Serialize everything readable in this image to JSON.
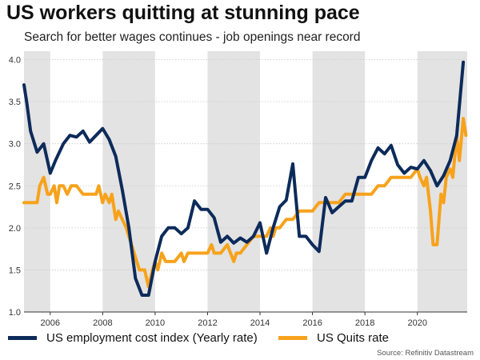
{
  "title": "US workers quitting at stunning pace",
  "subtitle": "Search for better wages continues - job openings near record",
  "source": "Source: Refinitiv Datastream",
  "colors": {
    "eci": "#0d2b5a",
    "quits": "#f7a21b",
    "shade": "#e3e3e3"
  },
  "chart_data": {
    "type": "line",
    "xlim": [
      2005,
      2021.9
    ],
    "ylim": [
      1.0,
      4.1
    ],
    "x_ticks": [
      "2006",
      "2008",
      "2010",
      "2012",
      "2014",
      "2016",
      "2018",
      "2020"
    ],
    "x_tick_values": [
      2006,
      2008,
      2010,
      2012,
      2014,
      2016,
      2018,
      2020
    ],
    "y_ticks": [
      "1.0",
      "1.5",
      "2.0",
      "2.5",
      "3.0",
      "3.5",
      "4.0"
    ],
    "y_tick_values": [
      1.0,
      1.5,
      2.0,
      2.5,
      3.0,
      3.5,
      4.0
    ],
    "grid": true,
    "legend": "bottom",
    "shaded_bands": [
      [
        2005,
        2006
      ],
      [
        2008,
        2010
      ],
      [
        2012,
        2014
      ],
      [
        2016,
        2018
      ],
      [
        2020,
        2021.9
      ]
    ],
    "series": [
      {
        "name": "US employment cost index (Yearly rate)",
        "x": [
          2005.0,
          2005.1,
          2005.25,
          2005.5,
          2005.75,
          2006.0,
          2006.2,
          2006.5,
          2006.75,
          2007.0,
          2007.25,
          2007.5,
          2007.75,
          2008.0,
          2008.25,
          2008.5,
          2008.75,
          2009.0,
          2009.25,
          2009.5,
          2009.75,
          2010.0,
          2010.25,
          2010.5,
          2010.75,
          2011.0,
          2011.25,
          2011.5,
          2011.75,
          2012.0,
          2012.25,
          2012.5,
          2012.75,
          2013.0,
          2013.25,
          2013.5,
          2013.75,
          2014.0,
          2014.25,
          2014.5,
          2014.75,
          2015.0,
          2015.25,
          2015.5,
          2015.75,
          2016.0,
          2016.25,
          2016.5,
          2016.75,
          2017.0,
          2017.25,
          2017.5,
          2017.75,
          2018.0,
          2018.25,
          2018.5,
          2018.75,
          2019.0,
          2019.25,
          2019.5,
          2019.75,
          2020.0,
          2020.25,
          2020.5,
          2020.75,
          2021.0,
          2021.25,
          2021.5,
          2021.75
        ],
        "values": [
          3.7,
          3.5,
          3.15,
          2.9,
          3.0,
          2.65,
          2.8,
          3.0,
          3.1,
          3.08,
          3.15,
          3.02,
          3.1,
          3.18,
          3.05,
          2.85,
          2.45,
          2.0,
          1.4,
          1.2,
          1.2,
          1.6,
          1.9,
          2.0,
          2.0,
          1.93,
          2.0,
          2.32,
          2.22,
          2.22,
          2.12,
          1.83,
          1.9,
          1.82,
          1.88,
          1.83,
          1.9,
          2.06,
          1.7,
          2.0,
          2.25,
          2.33,
          2.76,
          1.9,
          1.9,
          1.8,
          1.72,
          2.36,
          2.18,
          2.25,
          2.32,
          2.32,
          2.6,
          2.6,
          2.8,
          2.95,
          2.88,
          2.98,
          2.75,
          2.65,
          2.72,
          2.7,
          2.8,
          2.68,
          2.5,
          2.62,
          2.8,
          3.1,
          3.97
        ]
      },
      {
        "name": "US Quits rate",
        "x": [
          2005.0,
          2005.25,
          2005.5,
          2005.6,
          2005.75,
          2005.9,
          2006.0,
          2006.15,
          2006.25,
          2006.35,
          2006.5,
          2006.65,
          2006.8,
          2007.0,
          2007.25,
          2007.5,
          2007.75,
          2007.85,
          2008.0,
          2008.1,
          2008.25,
          2008.35,
          2008.5,
          2008.6,
          2008.75,
          2008.9,
          2009.0,
          2009.2,
          2009.4,
          2009.6,
          2009.75,
          2009.9,
          2010.0,
          2010.1,
          2010.25,
          2010.4,
          2010.5,
          2010.75,
          2011.0,
          2011.1,
          2011.25,
          2011.5,
          2011.75,
          2012.0,
          2012.15,
          2012.25,
          2012.5,
          2012.75,
          2013.0,
          2013.1,
          2013.25,
          2013.5,
          2013.75,
          2014.0,
          2014.25,
          2014.4,
          2014.5,
          2014.6,
          2014.75,
          2015.0,
          2015.25,
          2015.5,
          2015.75,
          2016.0,
          2016.25,
          2016.5,
          2016.75,
          2017.0,
          2017.25,
          2017.5,
          2017.75,
          2018.0,
          2018.25,
          2018.5,
          2018.75,
          2019.0,
          2019.25,
          2019.5,
          2019.75,
          2020.0,
          2020.1,
          2020.25,
          2020.35,
          2020.5,
          2020.6,
          2020.75,
          2020.9,
          2021.0,
          2021.1,
          2021.25,
          2021.35,
          2021.5,
          2021.6,
          2021.75,
          2021.85
        ],
        "values": [
          2.3,
          2.3,
          2.3,
          2.5,
          2.6,
          2.4,
          2.4,
          2.5,
          2.3,
          2.5,
          2.5,
          2.4,
          2.5,
          2.5,
          2.4,
          2.4,
          2.4,
          2.5,
          2.3,
          2.4,
          2.3,
          2.4,
          2.1,
          2.2,
          2.1,
          2.0,
          1.9,
          1.7,
          1.5,
          1.5,
          1.3,
          1.5,
          1.6,
          1.5,
          1.7,
          1.6,
          1.6,
          1.6,
          1.7,
          1.6,
          1.7,
          1.7,
          1.7,
          1.7,
          1.8,
          1.7,
          1.7,
          1.8,
          1.6,
          1.7,
          1.7,
          1.8,
          1.9,
          1.9,
          1.9,
          2.0,
          1.9,
          2.0,
          2.0,
          2.1,
          2.1,
          2.2,
          2.2,
          2.2,
          2.3,
          2.3,
          2.3,
          2.3,
          2.4,
          2.4,
          2.4,
          2.4,
          2.4,
          2.5,
          2.5,
          2.6,
          2.6,
          2.6,
          2.6,
          2.7,
          2.6,
          2.5,
          2.6,
          2.2,
          1.8,
          1.8,
          2.4,
          2.3,
          2.6,
          2.7,
          2.6,
          3.1,
          2.8,
          3.3,
          3.1
        ]
      }
    ]
  }
}
